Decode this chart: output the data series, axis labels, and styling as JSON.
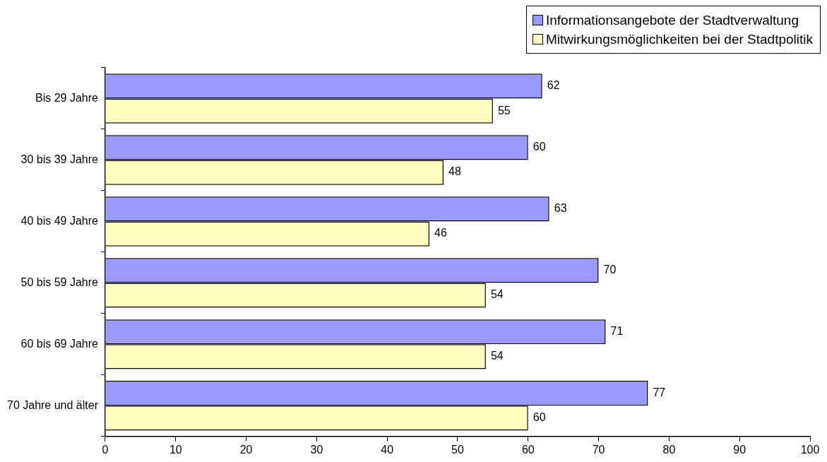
{
  "chart_data": {
    "type": "bar",
    "orientation": "horizontal",
    "categories": [
      "Bis 29 Jahre",
      "30 bis 39 Jahre",
      "40 bis 49 Jahre",
      "50 bis 59 Jahre",
      "60 bis 69 Jahre",
      "70 Jahre und älter"
    ],
    "series": [
      {
        "name": "Informationsangebote der Stadtverwaltung",
        "color": "#9999ff",
        "values": [
          62,
          60,
          63,
          70,
          71,
          77
        ]
      },
      {
        "name": "Mitwirkungsmöglichkeiten bei der Stadtpolitik",
        "color": "#ffffc0",
        "values": [
          55,
          48,
          46,
          54,
          54,
          60
        ]
      }
    ],
    "xlim": [
      0,
      100
    ],
    "xticks": [
      0,
      10,
      20,
      30,
      40,
      50,
      60,
      70,
      80,
      90,
      100
    ],
    "grid": false,
    "legend": "top right",
    "data_labels": true
  }
}
